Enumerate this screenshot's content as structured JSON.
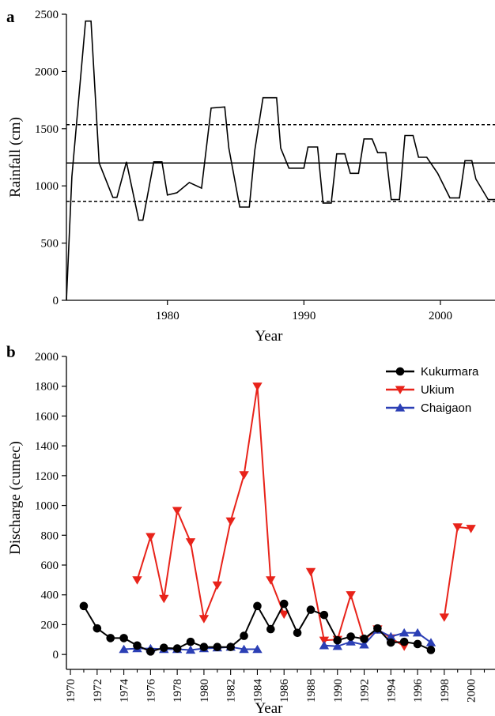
{
  "chart_data": [
    {
      "panel": "a",
      "type": "line",
      "xlabel": "Year",
      "ylabel": "Rainfall (cm)",
      "xlim": [
        1972.6,
        2004.0
      ],
      "ylim": [
        0,
        2500
      ],
      "xticks": [
        1980,
        1990,
        2000
      ],
      "yticks": [
        0,
        500,
        1000,
        1500,
        2000,
        2500
      ],
      "grid": false,
      "reference_lines": [
        {
          "style": "solid",
          "value": 1200
        },
        {
          "style": "dashed",
          "value": 1535
        },
        {
          "style": "dashed",
          "value": 865
        }
      ],
      "series": [
        {
          "color": "#000000",
          "x": [
            1972.6,
            1973.0,
            1974.0,
            1974.4,
            1975.0,
            1976.0,
            1976.3,
            1977.0,
            1977.9,
            1978.2,
            1979.0,
            1979.6,
            1980.0,
            1980.7,
            1981.6,
            1982.5,
            1983.2,
            1984.2,
            1984.5,
            1985.3,
            1986.0,
            1986.4,
            1987.0,
            1988.0,
            1988.3,
            1988.9,
            1990.0,
            1990.3,
            1991.0,
            1991.4,
            1992.0,
            1992.4,
            1993.0,
            1993.4,
            1994.0,
            1994.4,
            1995.0,
            1995.4,
            1996.0,
            1996.4,
            1997.0,
            1997.4,
            1998.0,
            1998.4,
            1999.0,
            1999.8,
            2000.7,
            2001.4,
            2001.8,
            2002.3,
            2002.6,
            2003.5,
            2004.0
          ],
          "y": [
            0,
            1080,
            2440,
            2440,
            1200,
            900,
            900,
            1210,
            700,
            700,
            1210,
            1210,
            920,
            940,
            1030,
            980,
            1680,
            1690,
            1330,
            815,
            815,
            1310,
            1770,
            1770,
            1330,
            1155,
            1155,
            1340,
            1340,
            850,
            850,
            1280,
            1280,
            1110,
            1110,
            1410,
            1410,
            1290,
            1290,
            880,
            880,
            1440,
            1440,
            1250,
            1250,
            1110,
            895,
            895,
            1220,
            1220,
            1060,
            880,
            880
          ]
        }
      ]
    },
    {
      "panel": "b",
      "type": "line",
      "xlabel": "Year",
      "ylabel": "Discharge (cumec)",
      "xlim": [
        1969.7,
        2001.8
      ],
      "ylim": [
        -100,
        2000
      ],
      "xticks": [
        1970,
        1972,
        1974,
        1976,
        1978,
        1980,
        1982,
        1984,
        1986,
        1988,
        1990,
        1992,
        1994,
        1996,
        1998,
        2000
      ],
      "yticks": [
        0,
        200,
        400,
        600,
        800,
        1000,
        1200,
        1400,
        1600,
        1800,
        2000
      ],
      "grid": false,
      "legend": "top-right",
      "series": [
        {
          "name": "Kukurmara",
          "color": "#000000",
          "marker": "circle",
          "segments": [
            {
              "x": [
                1971,
                1972,
                1973,
                1974,
                1975,
                1976,
                1977,
                1978,
                1979,
                1980,
                1981,
                1982,
                1983,
                1984,
                1985,
                1986,
                1987,
                1988,
                1989,
                1990,
                1991,
                1992,
                1993,
                1994,
                1995,
                1996,
                1997
              ],
              "y": [
                325,
                175,
                110,
                110,
                60,
                20,
                45,
                40,
                85,
                50,
                50,
                50,
                125,
                325,
                170,
                340,
                145,
                300,
                265,
                95,
                120,
                105,
                175,
                80,
                85,
                70,
                30
              ]
            }
          ]
        },
        {
          "name": "Ukium",
          "color": "#e8231a",
          "marker": "triangle-down",
          "segments": [
            {
              "x": [
                1975,
                1976,
                1977,
                1978,
                1979,
                1980,
                1981,
                1982,
                1983,
                1984,
                1985,
                1986
              ],
              "y": [
                500,
                790,
                375,
                965,
                755,
                240,
                465,
                895,
                1205,
                1800,
                500,
                270
              ]
            },
            {
              "x": [
                1988,
                1989,
                1990,
                1991,
                1992,
                1993,
                1994,
                1995
              ],
              "y": [
                555,
                95,
                100,
                400,
                100,
                170,
                110,
                55
              ]
            },
            {
              "x": [
                1998,
                1999,
                2000
              ],
              "y": [
                250,
                855,
                845
              ]
            }
          ]
        },
        {
          "name": "Chaigaon",
          "color": "#2b3fb5",
          "marker": "triangle-up",
          "segments": [
            {
              "x": [
                1974,
                1975,
                1976,
                1977,
                1978,
                1979,
                1980,
                1981,
                1982,
                1983,
                1984
              ],
              "y": [
                35,
                40,
                40,
                35,
                35,
                30,
                40,
                45,
                50,
                35,
                35
              ]
            },
            {
              "x": [
                1989,
                1990,
                1991,
                1992,
                1993,
                1994,
                1995,
                1996,
                1997
              ],
              "y": [
                60,
                55,
                85,
                65,
                165,
                120,
                145,
                145,
                80
              ]
            }
          ]
        }
      ]
    }
  ]
}
